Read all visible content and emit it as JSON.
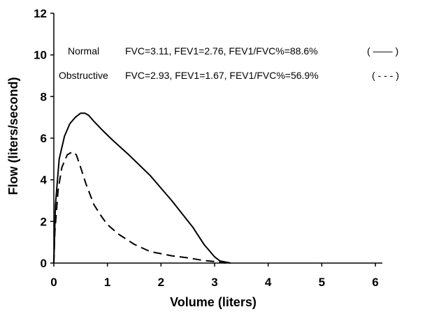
{
  "chart_data": {
    "type": "line",
    "xlabel": "Volume (liters)",
    "ylabel": "Flow (liters/second)",
    "xlim": [
      0,
      6
    ],
    "ylim": [
      0,
      12
    ],
    "xticks": [
      "0",
      "1",
      "2",
      "3",
      "4",
      "5",
      "6"
    ],
    "yticks": [
      "0",
      "2",
      "4",
      "6",
      "8",
      "10",
      "12"
    ],
    "grid": false,
    "legend_position": "top-right",
    "series": [
      {
        "name": "Normal",
        "label": "FVC=3.11, FEV1=2.76, FEV1/FVC%=88.6%",
        "legend_sample": "( —— )",
        "line_style": "solid",
        "color": "#000000",
        "x": [
          0,
          0.03,
          0.1,
          0.2,
          0.3,
          0.4,
          0.5,
          0.58,
          0.65,
          0.75,
          0.9,
          1.1,
          1.4,
          1.8,
          2.2,
          2.6,
          2.8,
          3.0,
          3.1,
          3.2,
          3.3
        ],
        "y": [
          0,
          2.8,
          5.0,
          6.1,
          6.7,
          7.0,
          7.2,
          7.2,
          7.1,
          6.8,
          6.4,
          5.9,
          5.2,
          4.2,
          3.0,
          1.7,
          0.9,
          0.3,
          0.1,
          0.05,
          0
        ]
      },
      {
        "name": "Obstructive",
        "label": "FVC=2.93, FEV1=1.67, FEV1/FVC%=56.9%",
        "legend_sample": "( - - - )",
        "line_style": "dashed",
        "color": "#000000",
        "x": [
          0,
          0.02,
          0.08,
          0.15,
          0.25,
          0.35,
          0.42,
          0.5,
          0.6,
          0.75,
          0.9,
          1.0,
          1.2,
          1.5,
          1.8,
          2.2,
          2.5,
          2.8,
          3.1,
          3.2
        ],
        "y": [
          0,
          1.5,
          3.5,
          4.6,
          5.2,
          5.35,
          5.2,
          4.6,
          3.8,
          2.8,
          2.2,
          1.85,
          1.4,
          0.9,
          0.55,
          0.35,
          0.25,
          0.12,
          0.05,
          0
        ]
      }
    ]
  }
}
